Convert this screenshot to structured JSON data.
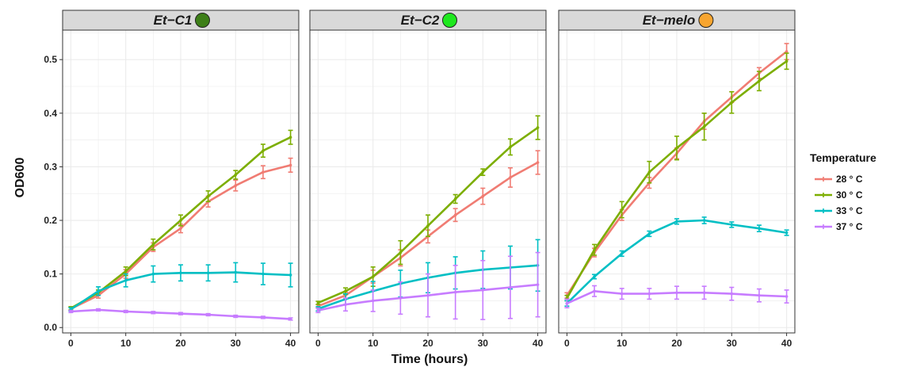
{
  "chart_data": {
    "type": "line",
    "xlabel": "Time (hours)",
    "ylabel": "OD600",
    "x_ticks": [
      "0",
      "10",
      "20",
      "30",
      "40"
    ],
    "y_ticks": [
      "0.0",
      "0.1",
      "0.2",
      "0.3",
      "0.4",
      "0.5"
    ],
    "xlim": [
      -1.5,
      41.5
    ],
    "ylim": [
      -0.01,
      0.555
    ],
    "grid": true,
    "legend": {
      "title": "Temperature",
      "placement": "right",
      "entries": [
        "28 ° C",
        "30 ° C",
        "33 ° C",
        "37 ° C"
      ]
    },
    "colors": {
      "28 ° C": "#f07c73",
      "30 ° C": "#7cae00",
      "33 ° C": "#00bfc4",
      "37 ° C": "#c77cff",
      "strip_bg": "#d9d9d9",
      "grid": "#ebebeb"
    },
    "x": [
      0,
      5,
      10,
      15,
      20,
      25,
      30,
      35,
      40
    ],
    "panels": [
      {
        "title": "Et−C1",
        "badge_color": "#3d7f18",
        "series": [
          {
            "name": "28 ° C",
            "values": [
              0.035,
              0.06,
              0.1,
              0.15,
              0.185,
              0.235,
              0.265,
              0.29,
              0.303
            ],
            "errors": [
              0.003,
              0.005,
              0.008,
              0.008,
              0.008,
              0.01,
              0.01,
              0.012,
              0.013
            ]
          },
          {
            "name": "30 ° C",
            "values": [
              0.036,
              0.065,
              0.105,
              0.155,
              0.2,
              0.245,
              0.285,
              0.33,
              0.355
            ],
            "errors": [
              0.003,
              0.005,
              0.008,
              0.01,
              0.01,
              0.01,
              0.008,
              0.012,
              0.013
            ]
          },
          {
            "name": "33 ° C",
            "values": [
              0.034,
              0.068,
              0.088,
              0.1,
              0.102,
              0.102,
              0.103,
              0.1,
              0.098
            ],
            "errors": [
              0.003,
              0.008,
              0.012,
              0.015,
              0.015,
              0.015,
              0.018,
              0.02,
              0.022
            ]
          },
          {
            "name": "37 ° C",
            "values": [
              0.03,
              0.033,
              0.03,
              0.028,
              0.026,
              0.024,
              0.021,
              0.019,
              0.016
            ],
            "errors": [
              0.002,
              0.002,
              0.002,
              0.002,
              0.002,
              0.002,
              0.002,
              0.002,
              0.002
            ]
          }
        ]
      },
      {
        "title": "Et−C2",
        "badge_color": "#1ee81e",
        "series": [
          {
            "name": "28 ° C",
            "values": [
              0.04,
              0.06,
              0.095,
              0.13,
              0.17,
              0.21,
              0.245,
              0.28,
              0.308
            ],
            "errors": [
              0.003,
              0.006,
              0.012,
              0.015,
              0.012,
              0.012,
              0.015,
              0.018,
              0.022
            ]
          },
          {
            "name": "30 ° C",
            "values": [
              0.046,
              0.068,
              0.095,
              0.14,
              0.19,
              0.24,
              0.29,
              0.337,
              0.373
            ],
            "errors": [
              0.003,
              0.006,
              0.018,
              0.022,
              0.02,
              0.008,
              0.006,
              0.015,
              0.022
            ]
          },
          {
            "name": "33 ° C",
            "values": [
              0.035,
              0.053,
              0.068,
              0.082,
              0.093,
              0.102,
              0.108,
              0.112,
              0.116
            ],
            "errors": [
              0.004,
              0.01,
              0.018,
              0.025,
              0.028,
              0.03,
              0.035,
              0.04,
              0.048
            ]
          },
          {
            "name": "37 ° C",
            "values": [
              0.032,
              0.043,
              0.05,
              0.055,
              0.06,
              0.066,
              0.07,
              0.075,
              0.08
            ],
            "errors": [
              0.004,
              0.012,
              0.02,
              0.03,
              0.04,
              0.05,
              0.055,
              0.058,
              0.06
            ]
          }
        ]
      },
      {
        "title": "Et−melo",
        "badge_color": "#f7a530",
        "series": [
          {
            "name": "28 ° C",
            "values": [
              0.06,
              0.14,
              0.21,
              0.27,
              0.325,
              0.385,
              0.43,
              0.475,
              0.515
            ],
            "errors": [
              0.005,
              0.008,
              0.01,
              0.01,
              0.01,
              0.015,
              0.01,
              0.01,
              0.015
            ]
          },
          {
            "name": "30 ° C",
            "values": [
              0.055,
              0.145,
              0.22,
              0.29,
              0.335,
              0.375,
              0.42,
              0.46,
              0.497
            ],
            "errors": [
              0.005,
              0.01,
              0.015,
              0.02,
              0.022,
              0.025,
              0.02,
              0.018,
              0.015
            ]
          },
          {
            "name": "33 ° C",
            "values": [
              0.045,
              0.095,
              0.138,
              0.175,
              0.198,
              0.2,
              0.192,
              0.185,
              0.177
            ],
            "errors": [
              0.005,
              0.004,
              0.005,
              0.005,
              0.005,
              0.006,
              0.005,
              0.006,
              0.005
            ]
          },
          {
            "name": "37 ° C",
            "values": [
              0.045,
              0.068,
              0.063,
              0.063,
              0.065,
              0.065,
              0.063,
              0.06,
              0.058
            ],
            "errors": [
              0.008,
              0.01,
              0.01,
              0.01,
              0.012,
              0.012,
              0.012,
              0.012,
              0.012
            ]
          }
        ]
      }
    ]
  }
}
